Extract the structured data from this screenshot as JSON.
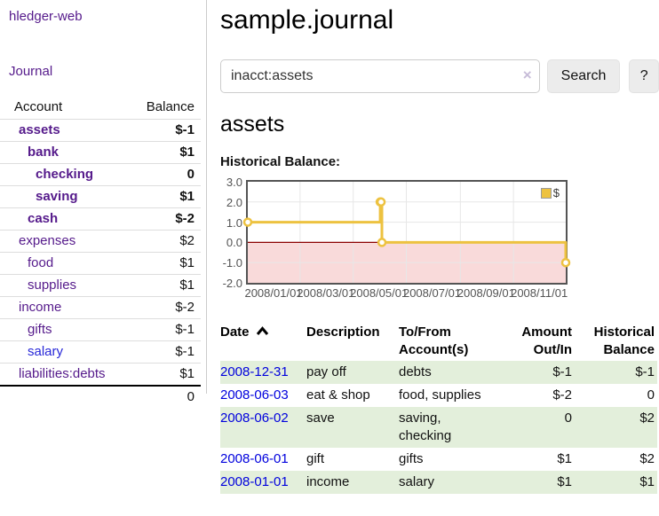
{
  "colors": {
    "link_purple": "#551a8b",
    "link_blue_unvisited": "#2727d8",
    "date_link_blue": "#0000dd",
    "negative_red": "#971616",
    "muted_negative_rose": "#bd6d6d",
    "row_stripe_green": "#e3efdb",
    "chart_series_yellow": "#edc240",
    "chart_negative_region": "#f9dada",
    "chart_zero_line": "#8b0000",
    "button_gray": "#ececec"
  },
  "sidebar": {
    "app_title": "hledger-web",
    "journal_link": "Journal",
    "accounts": {
      "header_account": "Account",
      "header_balance": "Balance",
      "rows": [
        {
          "name": "assets",
          "balance": "$-1"
        },
        {
          "name": "bank",
          "balance": "$1"
        },
        {
          "name": "checking",
          "balance": "0"
        },
        {
          "name": "saving",
          "balance": "$1"
        },
        {
          "name": "cash",
          "balance": "$-2"
        },
        {
          "name": "expenses",
          "balance": "$2"
        },
        {
          "name": "food",
          "balance": "$1"
        },
        {
          "name": "supplies",
          "balance": "$1"
        },
        {
          "name": "income",
          "balance": "$-2"
        },
        {
          "name": "gifts",
          "balance": "$-1"
        },
        {
          "name": "salary",
          "balance": "$-1"
        },
        {
          "name": "liabilities:debts",
          "balance": "$1"
        }
      ],
      "total": "0"
    }
  },
  "main": {
    "title": "sample.journal",
    "search": {
      "value": "inacct:assets",
      "clear": "×",
      "button": "Search",
      "help": "?"
    },
    "heading": "assets",
    "chart_title": "Historical Balance:"
  },
  "chart_data": {
    "type": "line",
    "step": true,
    "title": "Historical Balance",
    "legend": {
      "label": "$",
      "position": "top-right"
    },
    "series": [
      {
        "name": "$",
        "color": "#edc240",
        "points": [
          {
            "x": "2008-01-01",
            "y": 1
          },
          {
            "x": "2008-06-01",
            "y": 2
          },
          {
            "x": "2008-06-02",
            "y": 2
          },
          {
            "x": "2008-06-03",
            "y": 0
          },
          {
            "x": "2008-12-31",
            "y": -1
          }
        ]
      }
    ],
    "ylim": [
      -2.0,
      3.0
    ],
    "yticks": [
      3.0,
      2.0,
      1.0,
      0.0,
      -1.0,
      -2.0
    ],
    "ytick_labels": [
      "3.0",
      "2.0",
      "1.0",
      "0.0",
      "-1.0",
      "-2.0"
    ],
    "xtick_labels": [
      "2008/01/01",
      "2008/03/01",
      "2008/05/01",
      "2008/07/01",
      "2008/09/01",
      "2008/11/01"
    ],
    "grid": true,
    "negative_region": {
      "from": 0,
      "to": -2,
      "color": "#f9dada"
    },
    "zero_line_color": "#8b0000"
  },
  "register": {
    "headers": {
      "date": "Date",
      "description": "Description",
      "accounts": "To/From Account(s)",
      "amount": "Amount Out/In",
      "balance": "Historical Balance"
    },
    "rows": [
      {
        "date": "2008-12-31",
        "description": "pay off",
        "accounts": "debts",
        "amount": "$-1",
        "balance": "$-1"
      },
      {
        "date": "2008-06-03",
        "description": "eat & shop",
        "accounts": "food, supplies",
        "amount": "$-2",
        "balance": "0"
      },
      {
        "date": "2008-06-02",
        "description": "save",
        "accounts": "saving, checking",
        "amount": "0",
        "balance": "$2"
      },
      {
        "date": "2008-06-01",
        "description": "gift",
        "accounts": "gifts",
        "amount": "$1",
        "balance": "$2"
      },
      {
        "date": "2008-01-01",
        "description": "income",
        "accounts": "salary",
        "amount": "$1",
        "balance": "$1"
      }
    ]
  }
}
